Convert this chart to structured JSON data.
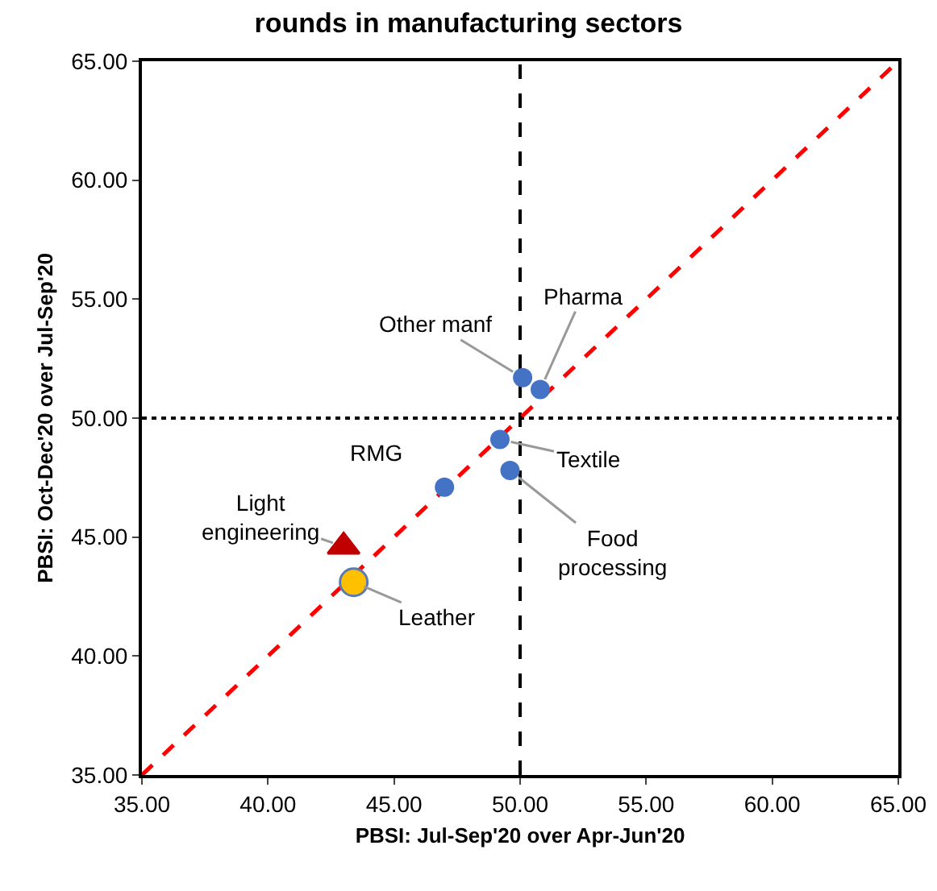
{
  "chart_data": {
    "type": "scatter",
    "title": "rounds in manufacturing sectors",
    "xlabel": "PBSI: Jul-Sep'20 over Apr-Jun'20",
    "ylabel": "PBSI: Oct-Dec'20 over Jul-Sep'20",
    "xlim": [
      35,
      65
    ],
    "ylim": [
      35,
      65
    ],
    "xticks": [
      {
        "value": 35,
        "label": "35.00"
      },
      {
        "value": 40,
        "label": "40.00"
      },
      {
        "value": 45,
        "label": "45.00"
      },
      {
        "value": 50,
        "label": "50.00"
      },
      {
        "value": 55,
        "label": "55.00"
      },
      {
        "value": 60,
        "label": "60.00"
      },
      {
        "value": 65,
        "label": "65.00"
      }
    ],
    "yticks": [
      {
        "value": 35,
        "label": "35.00"
      },
      {
        "value": 40,
        "label": "40.00"
      },
      {
        "value": 45,
        "label": "45.00"
      },
      {
        "value": 50,
        "label": "50.00"
      },
      {
        "value": 55,
        "label": "55.00"
      },
      {
        "value": 60,
        "label": "60.00"
      },
      {
        "value": 65,
        "label": "65.00"
      }
    ],
    "grid": false,
    "legend": false,
    "series": [
      {
        "type": "line",
        "color": "#ff0000",
        "line_style": "dashed",
        "marker": "none",
        "x": [
          35,
          65
        ],
        "values": [
          35,
          65
        ]
      },
      {
        "color": "#4472c4",
        "marker": "circle",
        "x": [
          50.1,
          50.8,
          49.2,
          49.6,
          47.0
        ],
        "values": [
          51.7,
          51.2,
          49.1,
          47.8,
          47.1
        ]
      },
      {
        "color": "#c00000",
        "marker": "triangle",
        "x": [
          43.0
        ],
        "values": [
          44.6
        ]
      },
      {
        "color": "#ffc000",
        "marker": "circle",
        "x": [
          43.4
        ],
        "values": [
          43.1
        ]
      }
    ],
    "ref_lines": [
      {
        "axis": "x",
        "value": 50,
        "line_style": "dashed",
        "color": "#000000"
      },
      {
        "axis": "y",
        "value": 50,
        "line_style": "dotted",
        "color": "#000000"
      }
    ],
    "annotations": [
      {
        "text": "Other manf",
        "x": 50.1,
        "y": 51.7
      },
      {
        "text": "Pharma",
        "x": 50.8,
        "y": 51.2
      },
      {
        "text": "Textile",
        "x": 49.2,
        "y": 49.1
      },
      {
        "text": "Food processing",
        "x": 49.6,
        "y": 47.8
      },
      {
        "text": "RMG",
        "x": 47.0,
        "y": 47.1
      },
      {
        "text": "Light engineering",
        "x": 43.0,
        "y": 44.6
      },
      {
        "text": "Leather",
        "x": 43.4,
        "y": 43.1
      }
    ]
  }
}
